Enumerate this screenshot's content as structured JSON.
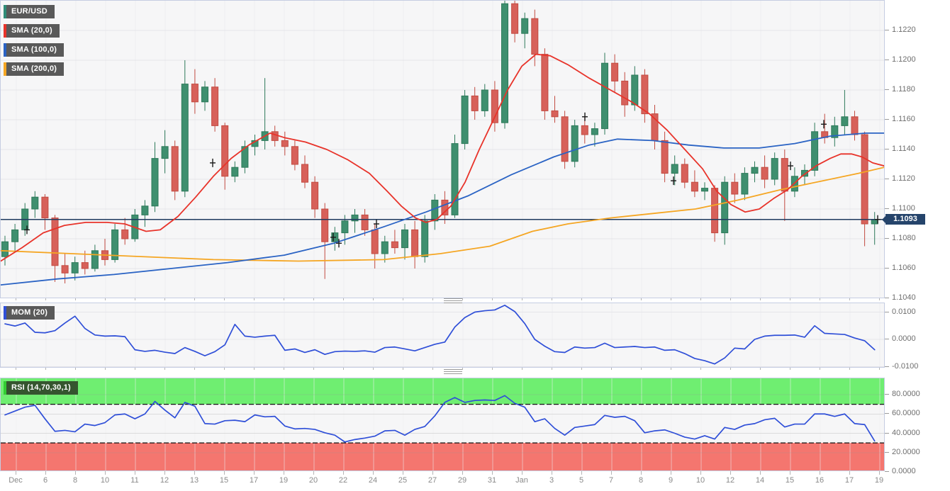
{
  "legend": {
    "pair": "EUR/USD",
    "sma20": "SMA (20,0)",
    "sma100": "SMA (100,0)",
    "sma200": "SMA (200,0)",
    "mom": "MOM (20)",
    "rsi": "RSI (14,70,30,1)"
  },
  "colors": {
    "bull": "#3f8f6f",
    "bull_border": "#2e7a5a",
    "bear": "#d7615a",
    "bear_border": "#c24b41",
    "sma20": "#e8332a",
    "sma100": "#2a63c4",
    "sma200": "#f5a623",
    "indicator_line": "#2f4fd8",
    "price_line": "#1f3a5f",
    "badge_bg": "#25446b",
    "rsi_overbought_fill": "#6fee71",
    "rsi_oversold_fill": "#f4766f",
    "band_edge": "#111111",
    "panel_border": "#c5cde2",
    "grid_h": "#e5e5e9",
    "grid_v": "#ededf0",
    "chip_bg": "#595959",
    "chip_text": "#ffffff",
    "chip_bar_pair": "#2f8c78",
    "rsi_chip_bg": "#35552f",
    "rsi_chip_bar": "#33cc33",
    "marker": "#1a1a1a",
    "axis_text": "#6e6e6e"
  },
  "price_axis": {
    "ticks": [
      "1.1220",
      "1.1200",
      "1.1180",
      "1.1160",
      "1.1140",
      "1.1120",
      "1.1100",
      "1.1080",
      "1.1060",
      "1.1040"
    ],
    "current_price": "1.1093"
  },
  "mom_axis": {
    "ticks": [
      "0.0100",
      "0.0000",
      "-0.0100"
    ]
  },
  "rsi_axis": {
    "ticks": [
      "80.0000",
      "60.0000",
      "40.0000",
      "20.0000",
      "0.0000"
    ]
  },
  "x_axis": {
    "labels": [
      "Dec",
      "6",
      "8",
      "10",
      "11",
      "12",
      "13",
      "15",
      "17",
      "19",
      "20",
      "22",
      "24",
      "25",
      "27",
      "29",
      "31",
      "Jan",
      "3",
      "5",
      "7",
      "8",
      "9",
      "10",
      "12",
      "14",
      "15",
      "16",
      "17",
      "19"
    ]
  },
  "chart_data": [
    {
      "type": "candlestick",
      "title": "EUR/USD",
      "ylim": [
        1.104,
        1.124
      ],
      "ytick_values": [
        1.122,
        1.12,
        1.118,
        1.116,
        1.114,
        1.112,
        1.11,
        1.108,
        1.106,
        1.104
      ],
      "current_price": 1.1093,
      "candles": [
        [
          1.1068,
          1.1082,
          1.1062,
          1.1078
        ],
        [
          1.1078,
          1.109,
          1.1072,
          1.1086
        ],
        [
          1.1086,
          1.1104,
          1.1082,
          1.11
        ],
        [
          1.11,
          1.1112,
          1.1094,
          1.1108
        ],
        [
          1.1108,
          1.111,
          1.1086,
          1.1094
        ],
        [
          1.1094,
          1.1096,
          1.1051,
          1.1062
        ],
        [
          1.1062,
          1.107,
          1.105,
          1.1057
        ],
        [
          1.1057,
          1.1068,
          1.1052,
          1.1064
        ],
        [
          1.1064,
          1.1072,
          1.1056,
          1.106
        ],
        [
          1.106,
          1.1076,
          1.1058,
          1.1072
        ],
        [
          1.1072,
          1.108,
          1.1062,
          1.1066
        ],
        [
          1.1066,
          1.109,
          1.1064,
          1.1086
        ],
        [
          1.1086,
          1.1094,
          1.1076,
          1.108
        ],
        [
          1.108,
          1.11,
          1.1078,
          1.1096
        ],
        [
          1.1096,
          1.1106,
          1.1088,
          1.1102
        ],
        [
          1.1102,
          1.1145,
          1.1098,
          1.1134
        ],
        [
          1.1134,
          1.1153,
          1.1124,
          1.1142
        ],
        [
          1.1142,
          1.1146,
          1.1106,
          1.1112
        ],
        [
          1.1112,
          1.12,
          1.1108,
          1.1184
        ],
        [
          1.1184,
          1.1194,
          1.1164,
          1.1172
        ],
        [
          1.1172,
          1.1186,
          1.1166,
          1.1182
        ],
        [
          1.1182,
          1.1188,
          1.1152,
          1.1156
        ],
        [
          1.1156,
          1.1158,
          1.1113,
          1.1122
        ],
        [
          1.1122,
          1.1132,
          1.1118,
          1.1128
        ],
        [
          1.1128,
          1.1146,
          1.1124,
          1.1142
        ],
        [
          1.1142,
          1.115,
          1.1136,
          1.1146
        ],
        [
          1.1146,
          1.1188,
          1.114,
          1.1152
        ],
        [
          1.1152,
          1.1156,
          1.1142,
          1.1146
        ],
        [
          1.1146,
          1.1152,
          1.1136,
          1.1142
        ],
        [
          1.1142,
          1.1146,
          1.1126,
          1.113
        ],
        [
          1.113,
          1.1136,
          1.1114,
          1.1118
        ],
        [
          1.1118,
          1.1122,
          1.1094,
          1.11
        ],
        [
          1.11,
          1.1104,
          1.1053,
          1.1078
        ],
        [
          1.1078,
          1.1088,
          1.1072,
          1.1084
        ],
        [
          1.1084,
          1.1096,
          1.1076,
          1.1092
        ],
        [
          1.1092,
          1.11,
          1.1084,
          1.1096
        ],
        [
          1.1096,
          1.11,
          1.1082,
          1.1086
        ],
        [
          1.1086,
          1.109,
          1.106,
          1.107
        ],
        [
          1.107,
          1.1082,
          1.1064,
          1.1078
        ],
        [
          1.1078,
          1.1086,
          1.107,
          1.1074
        ],
        [
          1.1074,
          1.109,
          1.1066,
          1.1086
        ],
        [
          1.1086,
          1.1092,
          1.106,
          1.1068
        ],
        [
          1.1068,
          1.1096,
          1.1064,
          1.1092
        ],
        [
          1.1092,
          1.111,
          1.1086,
          1.1106
        ],
        [
          1.1106,
          1.1112,
          1.109,
          1.1096
        ],
        [
          1.1096,
          1.115,
          1.1094,
          1.1144
        ],
        [
          1.1144,
          1.118,
          1.114,
          1.1176
        ],
        [
          1.1176,
          1.1182,
          1.116,
          1.1166
        ],
        [
          1.1166,
          1.1184,
          1.1162,
          1.118
        ],
        [
          1.118,
          1.1186,
          1.1152,
          1.1158
        ],
        [
          1.1158,
          1.1243,
          1.1154,
          1.1238
        ],
        [
          1.1238,
          1.124,
          1.1212,
          1.1218
        ],
        [
          1.1218,
          1.1232,
          1.1208,
          1.1228
        ],
        [
          1.1228,
          1.1234,
          1.1196,
          1.1204
        ],
        [
          1.1204,
          1.1208,
          1.116,
          1.1166
        ],
        [
          1.1166,
          1.1176,
          1.1158,
          1.1162
        ],
        [
          1.1162,
          1.1166,
          1.1127,
          1.1132
        ],
        [
          1.1132,
          1.116,
          1.1128,
          1.1156
        ],
        [
          1.1156,
          1.1162,
          1.1144,
          1.115
        ],
        [
          1.115,
          1.1158,
          1.1142,
          1.1154
        ],
        [
          1.1154,
          1.1205,
          1.115,
          1.1198
        ],
        [
          1.1198,
          1.1204,
          1.1178,
          1.1186
        ],
        [
          1.1186,
          1.1192,
          1.1162,
          1.117
        ],
        [
          1.117,
          1.1196,
          1.1166,
          1.119
        ],
        [
          1.119,
          1.1194,
          1.1158,
          1.1164
        ],
        [
          1.1164,
          1.117,
          1.114,
          1.1146
        ],
        [
          1.1146,
          1.1152,
          1.1118,
          1.1124
        ],
        [
          1.1124,
          1.1136,
          1.1116,
          1.113
        ],
        [
          1.113,
          1.1134,
          1.1114,
          1.1118
        ],
        [
          1.1118,
          1.1126,
          1.1108,
          1.1112
        ],
        [
          1.1112,
          1.1118,
          1.1106,
          1.1114
        ],
        [
          1.1114,
          1.1116,
          1.1078,
          1.1084
        ],
        [
          1.1084,
          1.1122,
          1.1076,
          1.1118
        ],
        [
          1.1118,
          1.1124,
          1.1104,
          1.111
        ],
        [
          1.111,
          1.1128,
          1.1106,
          1.1124
        ],
        [
          1.1124,
          1.1132,
          1.1118,
          1.1128
        ],
        [
          1.1128,
          1.1136,
          1.1114,
          1.112
        ],
        [
          1.112,
          1.1138,
          1.1116,
          1.1134
        ],
        [
          1.1134,
          1.114,
          1.1092,
          1.1112
        ],
        [
          1.1112,
          1.1128,
          1.1108,
          1.1122
        ],
        [
          1.1122,
          1.113,
          1.1116,
          1.1126
        ],
        [
          1.1126,
          1.1158,
          1.1122,
          1.1152
        ],
        [
          1.1152,
          1.1164,
          1.1144,
          1.1148
        ],
        [
          1.1148,
          1.1162,
          1.1142,
          1.1156
        ],
        [
          1.1156,
          1.118,
          1.115,
          1.1162
        ],
        [
          1.1162,
          1.1166,
          1.1146,
          1.115
        ],
        [
          1.115,
          1.1152,
          1.1075,
          1.109
        ],
        [
          1.109,
          1.1098,
          1.1076,
          1.1093
        ]
      ],
      "cross_markers": [
        [
          37,
          1.1086
        ],
        [
          299,
          1.1131
        ],
        [
          469,
          1.1081
        ],
        [
          477,
          1.1077
        ],
        [
          530,
          1.109
        ],
        [
          824,
          1.1162
        ],
        [
          949,
          1.1119
        ],
        [
          1114,
          1.1129
        ],
        [
          1161,
          1.1157
        ],
        [
          1237,
          1.1093
        ]
      ],
      "sma20_points": [
        [
          0,
          1.1065
        ],
        [
          30,
          1.1074
        ],
        [
          60,
          1.1084
        ],
        [
          90,
          1.1089
        ],
        [
          120,
          1.1091
        ],
        [
          150,
          1.1091
        ],
        [
          175,
          1.109
        ],
        [
          205,
          1.1085
        ],
        [
          225,
          1.1086
        ],
        [
          250,
          1.1095
        ],
        [
          275,
          1.1108
        ],
        [
          300,
          1.1122
        ],
        [
          325,
          1.1134
        ],
        [
          350,
          1.1143
        ],
        [
          380,
          1.1151
        ],
        [
          400,
          1.1148
        ],
        [
          430,
          1.1145
        ],
        [
          460,
          1.114
        ],
        [
          490,
          1.1133
        ],
        [
          520,
          1.1124
        ],
        [
          545,
          1.1112
        ],
        [
          565,
          1.1102
        ],
        [
          585,
          1.1094
        ],
        [
          600,
          1.1091
        ],
        [
          615,
          1.1093
        ],
        [
          635,
          1.1102
        ],
        [
          655,
          1.1118
        ],
        [
          675,
          1.114
        ],
        [
          695,
          1.116
        ],
        [
          715,
          1.118
        ],
        [
          735,
          1.1196
        ],
        [
          755,
          1.1204
        ],
        [
          775,
          1.1203
        ],
        [
          800,
          1.1197
        ],
        [
          830,
          1.1188
        ],
        [
          860,
          1.118
        ],
        [
          890,
          1.1172
        ],
        [
          915,
          1.1164
        ],
        [
          940,
          1.1153
        ],
        [
          965,
          1.114
        ],
        [
          990,
          1.1127
        ],
        [
          1010,
          1.1112
        ],
        [
          1030,
          1.1103
        ],
        [
          1050,
          1.1098
        ],
        [
          1070,
          1.11
        ],
        [
          1090,
          1.1107
        ],
        [
          1110,
          1.1113
        ],
        [
          1130,
          1.1122
        ],
        [
          1150,
          1.1129
        ],
        [
          1170,
          1.1134
        ],
        [
          1185,
          1.1137
        ],
        [
          1200,
          1.1137
        ],
        [
          1215,
          1.1135
        ],
        [
          1230,
          1.1131
        ],
        [
          1246,
          1.1129
        ]
      ],
      "sma100_points": [
        [
          0,
          1.1049
        ],
        [
          80,
          1.1053
        ],
        [
          160,
          1.1056
        ],
        [
          240,
          1.106
        ],
        [
          320,
          1.1064
        ],
        [
          400,
          1.1069
        ],
        [
          470,
          1.1077
        ],
        [
          540,
          1.1088
        ],
        [
          600,
          1.1098
        ],
        [
          660,
          1.1109
        ],
        [
          720,
          1.1123
        ],
        [
          780,
          1.1135
        ],
        [
          830,
          1.1143
        ],
        [
          870,
          1.1147
        ],
        [
          920,
          1.1146
        ],
        [
          970,
          1.1143
        ],
        [
          1020,
          1.1141
        ],
        [
          1070,
          1.1141
        ],
        [
          1120,
          1.1144
        ],
        [
          1170,
          1.1149
        ],
        [
          1220,
          1.1151
        ],
        [
          1246,
          1.1151
        ]
      ],
      "sma200_points": [
        [
          0,
          1.1072
        ],
        [
          150,
          1.1069
        ],
        [
          300,
          1.1066
        ],
        [
          420,
          1.1065
        ],
        [
          540,
          1.1066
        ],
        [
          620,
          1.107
        ],
        [
          690,
          1.1075
        ],
        [
          750,
          1.1085
        ],
        [
          800,
          1.109
        ],
        [
          860,
          1.1094
        ],
        [
          920,
          1.1097
        ],
        [
          980,
          1.11
        ],
        [
          1040,
          1.1106
        ],
        [
          1100,
          1.1113
        ],
        [
          1160,
          1.1119
        ],
        [
          1210,
          1.1124
        ],
        [
          1246,
          1.1128
        ]
      ]
    },
    {
      "type": "line",
      "name": "MOM (20)",
      "ylim": [
        -0.0132,
        0.0133
      ],
      "yticks": [
        0.01,
        0.0,
        -0.01
      ],
      "values": [
        0.0057,
        0.0049,
        0.006,
        0.0026,
        0.0024,
        0.0032,
        0.006,
        0.0085,
        0.004,
        0.0016,
        0.0012,
        0.0013,
        0.001,
        -0.0038,
        -0.0044,
        -0.004,
        -0.0047,
        -0.0052,
        -0.003,
        -0.0044,
        -0.006,
        -0.0045,
        -0.002,
        0.0055,
        0.0012,
        0.0008,
        0.0012,
        0.0015,
        -0.004,
        -0.0035,
        -0.0048,
        -0.0038,
        -0.0055,
        -0.0045,
        -0.0043,
        -0.0044,
        -0.0042,
        -0.0047,
        -0.003,
        -0.0028,
        -0.0035,
        -0.0042,
        -0.003,
        -0.0018,
        -0.001,
        0.0045,
        0.008,
        0.01,
        0.0105,
        0.0108,
        0.0125,
        0.0102,
        0.0058,
        0.0,
        -0.0025,
        -0.0045,
        -0.0048,
        -0.0028,
        -0.0032,
        -0.003,
        -0.0014,
        -0.003,
        -0.0028,
        -0.0026,
        -0.003,
        -0.0028,
        -0.004,
        -0.0038,
        -0.0052,
        -0.007,
        -0.0078,
        -0.009,
        -0.0068,
        -0.0032,
        -0.0035,
        0.0,
        0.0012,
        0.0015,
        0.0015,
        0.0016,
        0.0008,
        0.005,
        0.0022,
        0.002,
        0.0018,
        0.0005,
        -0.0005,
        -0.0038
      ]
    },
    {
      "type": "line",
      "name": "RSI (14,70,30,1)",
      "ylim": [
        0,
        97
      ],
      "yticks": [
        80,
        60,
        40,
        20,
        0
      ],
      "bands": {
        "overbought_above": 70,
        "oversold_below": 30
      },
      "values": [
        59,
        63,
        67,
        69,
        55,
        42,
        43,
        41.5,
        49.5,
        48,
        51,
        59,
        60,
        55,
        60,
        73,
        64,
        56,
        72,
        68,
        50,
        49.5,
        53,
        53.5,
        52,
        59,
        57,
        57.5,
        47.5,
        44.5,
        45,
        44,
        40.5,
        38,
        31,
        33.5,
        35,
        37,
        42.5,
        43,
        38,
        44,
        47,
        58,
        72,
        77,
        72,
        74,
        74.5,
        74,
        79,
        71,
        67,
        52,
        55,
        45,
        38,
        46,
        47.5,
        49,
        58.5,
        56.5,
        57.5,
        53,
        40.5,
        42.5,
        43.5,
        40,
        36,
        34,
        37.5,
        34,
        46,
        44,
        48.5,
        50,
        54,
        55.5,
        46.5,
        49.5,
        49.5,
        60,
        60,
        57.5,
        60,
        50,
        49,
        32
      ]
    }
  ]
}
